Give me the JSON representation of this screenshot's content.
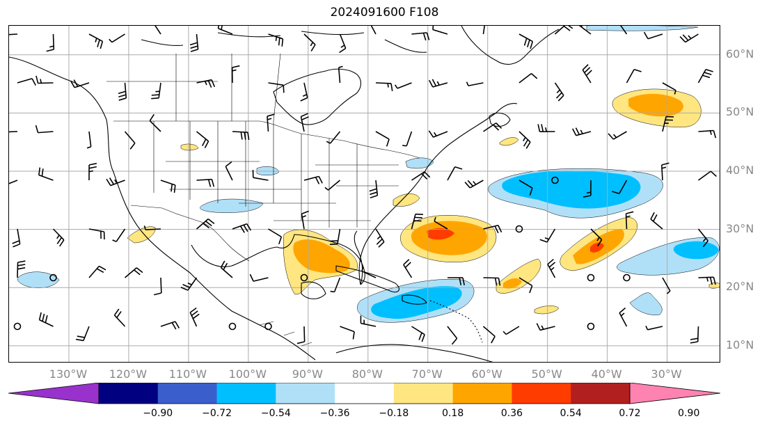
{
  "title": "2024091600 F108",
  "map": {
    "lon_range": [
      -140,
      -21
    ],
    "lat_range": [
      7,
      65
    ],
    "lat_labels": [
      "60°N",
      "50°N",
      "40°N",
      "30°N",
      "20°N",
      "10°N"
    ],
    "lon_labels": [
      "130°W",
      "120°W",
      "110°W",
      "100°W",
      "90°W",
      "80°W",
      "70°W",
      "60°W",
      "50°W",
      "40°W",
      "30°W"
    ],
    "grid": true
  },
  "colorbar": {
    "colors": [
      "#9932cc",
      "#000080",
      "#3a5fcd",
      "#00bfff",
      "#b0e0f8",
      "#ffffff",
      "#ffe680",
      "#ffa500",
      "#ff3c00",
      "#b21f1f",
      "#ff83b0"
    ],
    "ticks": [
      "−0.90",
      "−0.72",
      "−0.54",
      "−0.36",
      "−0.18",
      "0.18",
      "0.36",
      "0.54",
      "0.72",
      "0.90"
    ]
  },
  "colors": {
    "grid": "#aaaaaa",
    "axis_label": "#888888",
    "coast": "#000000",
    "light_blue": "#b0e0f8",
    "blue": "#00bfff",
    "yellow": "#ffe680",
    "orange": "#ffa500",
    "red": "#ff3c00"
  }
}
